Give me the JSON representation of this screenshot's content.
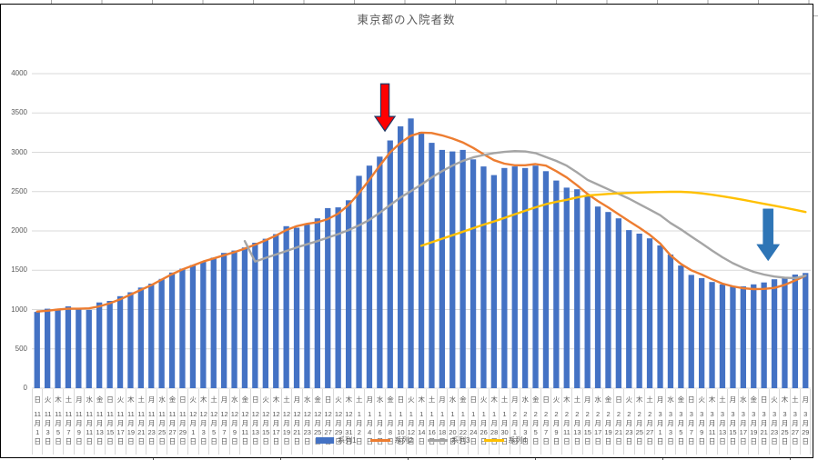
{
  "chart_data": {
    "type": "combo-bar-line",
    "title": "東京都の入院者数",
    "ylim": [
      0,
      4000
    ],
    "y_step": 500,
    "grid": true,
    "legend_position": "bottom-center",
    "x_label_suffixes": {
      "month": "月",
      "day": "日"
    },
    "x": [
      [
        "日",
        "11",
        "1"
      ],
      [
        "火",
        "11",
        "3"
      ],
      [
        "木",
        "11",
        "5"
      ],
      [
        "土",
        "11",
        "7"
      ],
      [
        "月",
        "11",
        "9"
      ],
      [
        "水",
        "11",
        "11"
      ],
      [
        "金",
        "11",
        "13"
      ],
      [
        "日",
        "11",
        "15"
      ],
      [
        "火",
        "11",
        "17"
      ],
      [
        "木",
        "11",
        "19"
      ],
      [
        "土",
        "11",
        "21"
      ],
      [
        "月",
        "11",
        "23"
      ],
      [
        "水",
        "11",
        "25"
      ],
      [
        "金",
        "11",
        "27"
      ],
      [
        "日",
        "11",
        "29"
      ],
      [
        "火",
        "12",
        "1"
      ],
      [
        "木",
        "12",
        "3"
      ],
      [
        "土",
        "12",
        "5"
      ],
      [
        "月",
        "12",
        "7"
      ],
      [
        "水",
        "12",
        "9"
      ],
      [
        "金",
        "12",
        "11"
      ],
      [
        "日",
        "12",
        "13"
      ],
      [
        "火",
        "12",
        "15"
      ],
      [
        "木",
        "12",
        "17"
      ],
      [
        "土",
        "12",
        "19"
      ],
      [
        "月",
        "12",
        "21"
      ],
      [
        "水",
        "12",
        "23"
      ],
      [
        "金",
        "12",
        "25"
      ],
      [
        "日",
        "12",
        "27"
      ],
      [
        "火",
        "12",
        "29"
      ],
      [
        "木",
        "12",
        "31"
      ],
      [
        "土",
        "1",
        "2"
      ],
      [
        "月",
        "1",
        "4"
      ],
      [
        "水",
        "1",
        "6"
      ],
      [
        "金",
        "1",
        "8"
      ],
      [
        "日",
        "1",
        "10"
      ],
      [
        "火",
        "1",
        "12"
      ],
      [
        "木",
        "1",
        "14"
      ],
      [
        "土",
        "1",
        "16"
      ],
      [
        "月",
        "1",
        "18"
      ],
      [
        "水",
        "1",
        "20"
      ],
      [
        "金",
        "1",
        "22"
      ],
      [
        "日",
        "1",
        "24"
      ],
      [
        "火",
        "1",
        "26"
      ],
      [
        "木",
        "1",
        "28"
      ],
      [
        "土",
        "1",
        "30"
      ],
      [
        "月",
        "2",
        "1"
      ],
      [
        "水",
        "2",
        "3"
      ],
      [
        "金",
        "2",
        "5"
      ],
      [
        "日",
        "2",
        "7"
      ],
      [
        "火",
        "2",
        "9"
      ],
      [
        "木",
        "2",
        "11"
      ],
      [
        "土",
        "2",
        "13"
      ],
      [
        "月",
        "2",
        "15"
      ],
      [
        "水",
        "2",
        "17"
      ],
      [
        "金",
        "2",
        "19"
      ],
      [
        "日",
        "2",
        "21"
      ],
      [
        "火",
        "2",
        "23"
      ],
      [
        "木",
        "2",
        "25"
      ],
      [
        "土",
        "2",
        "27"
      ],
      [
        "月",
        "3",
        "1"
      ],
      [
        "水",
        "3",
        "3"
      ],
      [
        "金",
        "3",
        "5"
      ],
      [
        "日",
        "3",
        "7"
      ],
      [
        "火",
        "3",
        "9"
      ],
      [
        "木",
        "3",
        "11"
      ],
      [
        "土",
        "3",
        "13"
      ],
      [
        "月",
        "3",
        "15"
      ],
      [
        "水",
        "3",
        "17"
      ],
      [
        "金",
        "3",
        "19"
      ],
      [
        "日",
        "3",
        "21"
      ],
      [
        "火",
        "3",
        "23"
      ],
      [
        "木",
        "3",
        "25"
      ],
      [
        "土",
        "3",
        "27"
      ],
      [
        "月",
        "3",
        "29"
      ]
    ],
    "series": [
      {
        "name": "系列1",
        "type": "bar",
        "color": "#4472C4",
        "start_index": 0,
        "values": [
          970,
          1010,
          1010,
          1040,
          1005,
          995,
          1090,
          1110,
          1170,
          1220,
          1280,
          1330,
          1390,
          1470,
          1520,
          1565,
          1610,
          1660,
          1720,
          1750,
          1790,
          1850,
          1900,
          1960,
          2060,
          2040,
          2080,
          2160,
          2290,
          2300,
          2390,
          2700,
          2830,
          2945,
          3150,
          3330,
          3430,
          3260,
          3120,
          3030,
          3010,
          3030,
          2910,
          2820,
          2710,
          2800,
          2820,
          2800,
          2830,
          2760,
          2640,
          2550,
          2530,
          2450,
          2310,
          2240,
          2160,
          2010,
          1965,
          1905,
          1815,
          1700,
          1560,
          1440,
          1400,
          1350,
          1320,
          1300,
          1295,
          1320,
          1345,
          1385,
          1410,
          1445,
          1465
        ]
      },
      {
        "name": "系列2",
        "type": "line",
        "color": "#ED7D31",
        "start_index": 0,
        "values": [
          975,
          985,
          1000,
          1010,
          1010,
          1015,
          1040,
          1080,
          1130,
          1190,
          1250,
          1310,
          1380,
          1450,
          1510,
          1560,
          1610,
          1650,
          1690,
          1730,
          1775,
          1825,
          1880,
          1940,
          2010,
          2060,
          2090,
          2110,
          2150,
          2220,
          2330,
          2480,
          2650,
          2830,
          3000,
          3120,
          3210,
          3250,
          3245,
          3215,
          3175,
          3125,
          3055,
          2975,
          2900,
          2855,
          2835,
          2835,
          2850,
          2830,
          2760,
          2680,
          2580,
          2470,
          2380,
          2300,
          2210,
          2125,
          2040,
          1950,
          1840,
          1690,
          1580,
          1500,
          1445,
          1385,
          1330,
          1295,
          1270,
          1260,
          1262,
          1275,
          1315,
          1370,
          1430
        ]
      },
      {
        "name": "系列3",
        "type": "line",
        "color": "#A5A5A5",
        "start_index": 20,
        "values": [
          1870,
          1610,
          1655,
          1700,
          1745,
          1790,
          1830,
          1870,
          1915,
          1960,
          2010,
          2070,
          2140,
          2230,
          2330,
          2425,
          2505,
          2590,
          2680,
          2760,
          2830,
          2890,
          2935,
          2965,
          2990,
          3005,
          3015,
          3010,
          2990,
          2940,
          2890,
          2830,
          2745,
          2650,
          2590,
          2530,
          2470,
          2410,
          2340,
          2270,
          2200,
          2100,
          2020,
          1930,
          1840,
          1750,
          1665,
          1590,
          1530,
          1480,
          1445,
          1420,
          1405,
          1400,
          1430
        ]
      },
      {
        "name": "系列4",
        "type": "line",
        "color": "#FFC000",
        "start_index": 37,
        "values": [
          1810,
          1855,
          1900,
          1945,
          1990,
          2035,
          2080,
          2120,
          2165,
          2210,
          2255,
          2300,
          2340,
          2370,
          2395,
          2425,
          2450,
          2460,
          2470,
          2478,
          2483,
          2488,
          2492,
          2495,
          2497,
          2497,
          2490,
          2478,
          2460,
          2440,
          2418,
          2395,
          2370,
          2345,
          2320,
          2295,
          2268,
          2240
        ]
      }
    ],
    "annotations": [
      {
        "name": "red-down-arrow",
        "shape": "down-arrow",
        "fill": "#FF0000",
        "outline": "#203864",
        "x_index": 33.5,
        "top_value": 3870,
        "tip_value": 3270,
        "points_at_label": "1月6日-1月8日"
      },
      {
        "name": "blue-down-arrow",
        "shape": "down-arrow",
        "fill": "#2E75B6",
        "outline": "none",
        "x_index": 70.4,
        "top_value": 2280,
        "tip_value": 1620,
        "points_at_label": "3月21日"
      }
    ]
  }
}
